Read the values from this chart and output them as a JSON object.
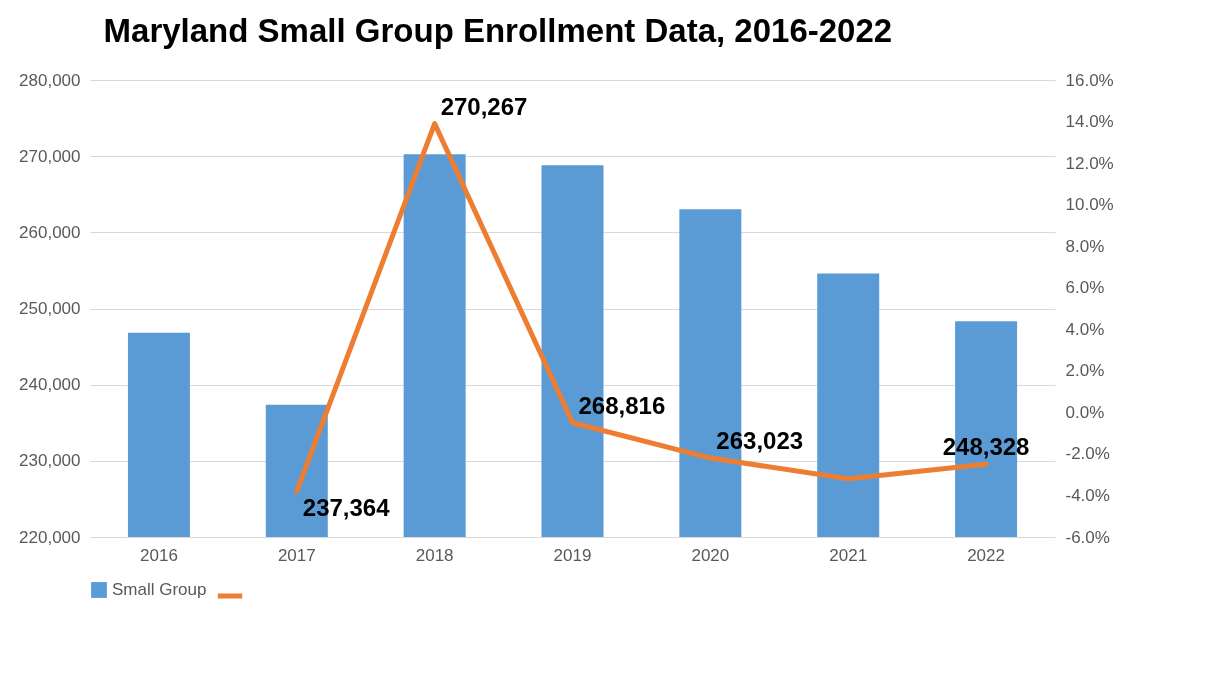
{
  "chart_data": {
    "type": "bar",
    "title": "Maryland Small Group Enrollment Data, 2016-2022",
    "categories": [
      "2016",
      "2017",
      "2018",
      "2019",
      "2020",
      "2021",
      "2022"
    ],
    "series": [
      {
        "name": "Small Group",
        "color": "#5b9bd5",
        "values": [
          246800,
          237364,
          270267,
          268816,
          263023,
          254600,
          248328
        ],
        "value_labels": [
          null,
          "237,364",
          "270,267",
          "268,816",
          "263,023",
          null,
          "248,328"
        ]
      },
      {
        "type": "line",
        "axis": "y2",
        "color": "#ed7d31",
        "values": [
          null,
          -3.8,
          13.9,
          -0.5,
          -2.2,
          -3.2,
          -2.5
        ]
      }
    ],
    "ylim": [
      220000,
      280000
    ],
    "yticks": [
      {
        "value": 220000,
        "label": "220,000"
      },
      {
        "value": 230000,
        "label": "230,000"
      },
      {
        "value": 240000,
        "label": "240,000"
      },
      {
        "value": 250000,
        "label": "250,000"
      },
      {
        "value": 260000,
        "label": "260,000"
      },
      {
        "value": 270000,
        "label": "270,000"
      },
      {
        "value": 280000,
        "label": "280,000"
      }
    ],
    "y2lim": [
      -6,
      16
    ],
    "y2ticks": [
      {
        "value": -6,
        "label": "-6.0%"
      },
      {
        "value": -4,
        "label": "-4.0%"
      },
      {
        "value": -2,
        "label": "-2.0%"
      },
      {
        "value": 0,
        "label": "0.0%"
      },
      {
        "value": 2,
        "label": "2.0%"
      },
      {
        "value": 4,
        "label": "4.0%"
      },
      {
        "value": 6,
        "label": "6.0%"
      },
      {
        "value": 8,
        "label": "8.0%"
      },
      {
        "value": 10,
        "label": "10.0%"
      },
      {
        "value": 12,
        "label": "12.0%"
      },
      {
        "value": 14,
        "label": "14.0%"
      },
      {
        "value": 16,
        "label": "16.0%"
      }
    ],
    "grid": "y",
    "legend": "bottom",
    "marker": "none",
    "line_style": "solid"
  }
}
